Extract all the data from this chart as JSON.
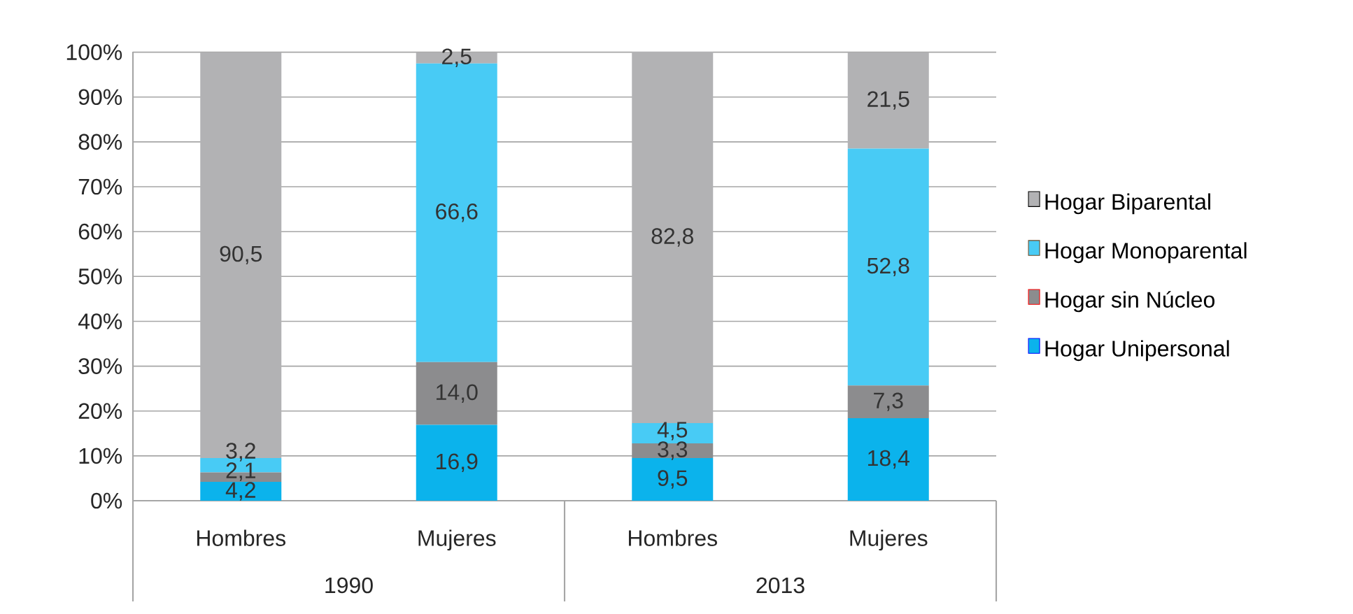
{
  "chart_data": {
    "type": "bar",
    "stacked": true,
    "categories": [
      "Hombres",
      "Mujeres",
      "Hombres",
      "Mujeres"
    ],
    "annotations": [
      "1990",
      "2013"
    ],
    "series": [
      {
        "name": "Hogar Unipersonal",
        "color": "#0bb3ec",
        "values": [
          4.2,
          16.9,
          9.5,
          18.4
        ],
        "value_labels": [
          "4,2",
          "16,9",
          "9,5",
          "18,4"
        ]
      },
      {
        "name": "Hogar sin Núcleo",
        "color": "#8c8c8e",
        "values": [
          2.1,
          14.0,
          3.3,
          7.3
        ],
        "value_labels": [
          "2,1",
          "14,0",
          "3,3",
          "7,3"
        ]
      },
      {
        "name": "Hogar Monoparental",
        "color": "#48cbf5",
        "values": [
          3.2,
          66.6,
          4.5,
          52.8
        ],
        "value_labels": [
          "3,2",
          "66,6",
          "4,5",
          "52,8"
        ]
      },
      {
        "name": "Hogar Biparental",
        "color": "#b2b2b4",
        "values": [
          90.5,
          2.5,
          82.8,
          21.5
        ],
        "value_labels": [
          "90,5",
          "2,5",
          "82,8",
          "21,5"
        ]
      }
    ],
    "ylim": [
      0,
      100.1
    ],
    "yticks": [
      {
        "value": 0,
        "label": "0%"
      },
      {
        "value": 10,
        "label": "10%"
      },
      {
        "value": 20,
        "label": "20%"
      },
      {
        "value": 30,
        "label": "30%"
      },
      {
        "value": 40,
        "label": "40%"
      },
      {
        "value": 50,
        "label": "50%"
      },
      {
        "value": 60,
        "label": "60%"
      },
      {
        "value": 70,
        "label": "70%"
      },
      {
        "value": 80,
        "label": "80%"
      },
      {
        "value": 90,
        "label": "90%"
      },
      {
        "value": 100,
        "label": "100%"
      }
    ],
    "grid": "y",
    "legend": "right"
  }
}
